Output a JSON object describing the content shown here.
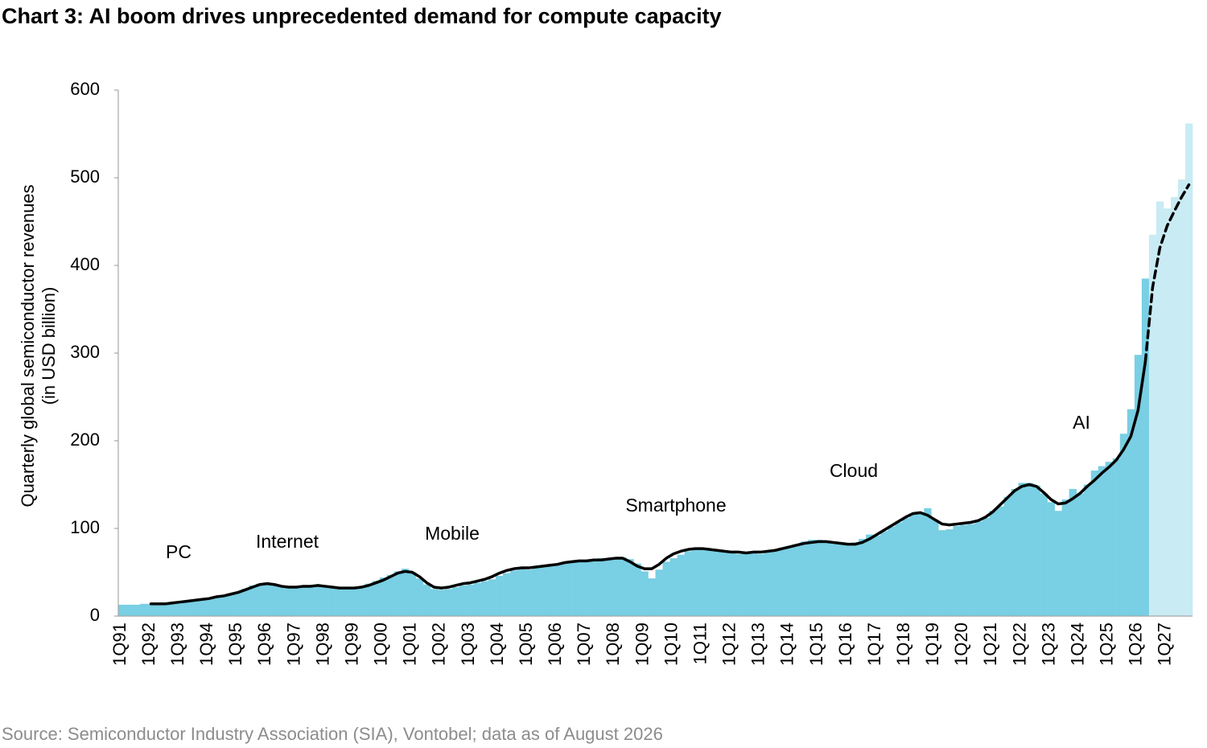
{
  "chart_data": {
    "type": "bar",
    "title": "Chart 3: AI boom drives unprecedented demand for compute capacity",
    "y_label": [
      "Quarterly global semiconductor revenues",
      "(in USD billion)"
    ],
    "source": "Source: Semiconductor Industry Association (SIA), Vontobel; data as of August 2026",
    "annotations": [
      "PC",
      "Internet",
      "Mobile",
      "Smartphone",
      "Cloud",
      "AI"
    ],
    "categories": [
      "1Q91",
      null,
      null,
      null,
      "1Q92",
      null,
      null,
      null,
      "1Q93",
      null,
      null,
      null,
      "1Q94",
      null,
      null,
      null,
      "1Q95",
      null,
      null,
      null,
      "1Q96",
      null,
      null,
      null,
      "1Q97",
      null,
      null,
      null,
      "1Q98",
      null,
      null,
      null,
      "1Q99",
      null,
      null,
      null,
      "1Q00",
      null,
      null,
      null,
      "1Q01",
      null,
      null,
      null,
      "1Q02",
      null,
      null,
      null,
      "1Q03",
      null,
      null,
      null,
      "1Q04",
      null,
      null,
      null,
      "1Q05",
      null,
      null,
      null,
      "1Q06",
      null,
      null,
      null,
      "1Q07",
      null,
      null,
      null,
      "1Q08",
      null,
      null,
      null,
      "1Q09",
      null,
      null,
      null,
      "1Q10",
      null,
      null,
      null,
      "1Q11",
      null,
      null,
      null,
      "1Q12",
      null,
      null,
      null,
      "1Q13",
      null,
      null,
      null,
      "1Q14",
      null,
      null,
      null,
      "1Q15",
      null,
      null,
      null,
      "1Q16",
      null,
      null,
      null,
      "1Q17",
      null,
      null,
      null,
      "1Q18",
      null,
      null,
      null,
      "1Q19",
      null,
      null,
      null,
      "1Q20",
      null,
      null,
      null,
      "1Q21",
      null,
      null,
      null,
      "1Q22",
      null,
      null,
      null,
      "1Q23",
      null,
      null,
      null,
      "1Q24",
      null,
      null,
      null,
      "1Q25",
      null,
      null,
      null,
      "1Q26",
      null,
      null,
      null,
      "1Q27",
      null,
      null,
      null
    ],
    "series": [
      {
        "kind": "bar",
        "color": "#79cfe3",
        "values": [
          13,
          13,
          13,
          14,
          14,
          14,
          15,
          15,
          16,
          17,
          18,
          19,
          20,
          22,
          24,
          26,
          28,
          31,
          35,
          37,
          37,
          36,
          33,
          32,
          32,
          33,
          35,
          35,
          33,
          32,
          31,
          32,
          33,
          34,
          37,
          40,
          44,
          47,
          51,
          54,
          50,
          43,
          36,
          31,
          30,
          31,
          33,
          35,
          36,
          38,
          40,
          42,
          46,
          49,
          52,
          54,
          53,
          55,
          57,
          58,
          58,
          60,
          62,
          63,
          62,
          64,
          66,
          66,
          66,
          67,
          65,
          60,
          51,
          43,
          53,
          62,
          66,
          70,
          74,
          78,
          76,
          76,
          75,
          74,
          72,
          71,
          72,
          73,
          71,
          73,
          76,
          78,
          80,
          82,
          85,
          87,
          87,
          86,
          85,
          84,
          82,
          84,
          88,
          93,
          92,
          97,
          102,
          107,
          112,
          116,
          118,
          123,
          110,
          98,
          99,
          103,
          104,
          105,
          108,
          112,
          120,
          125,
          136,
          145,
          152,
          152,
          149,
          140,
          130,
          120,
          133,
          145,
          140,
          150,
          166,
          171,
          176,
          180,
          208,
          236,
          298,
          385,
          null,
          null,
          null,
          null,
          null,
          null
        ]
      },
      {
        "kind": "bar",
        "color": "#c9ebf4",
        "values": [
          null,
          null,
          null,
          null,
          null,
          null,
          null,
          null,
          null,
          null,
          null,
          null,
          null,
          null,
          null,
          null,
          null,
          null,
          null,
          null,
          null,
          null,
          null,
          null,
          null,
          null,
          null,
          null,
          null,
          null,
          null,
          null,
          null,
          null,
          null,
          null,
          null,
          null,
          null,
          null,
          null,
          null,
          null,
          null,
          null,
          null,
          null,
          null,
          null,
          null,
          null,
          null,
          null,
          null,
          null,
          null,
          null,
          null,
          null,
          null,
          null,
          null,
          null,
          null,
          null,
          null,
          null,
          null,
          null,
          null,
          null,
          null,
          null,
          null,
          null,
          null,
          null,
          null,
          null,
          null,
          null,
          null,
          null,
          null,
          null,
          null,
          null,
          null,
          null,
          null,
          null,
          null,
          null,
          null,
          null,
          null,
          null,
          null,
          null,
          null,
          null,
          null,
          null,
          null,
          null,
          null,
          null,
          null,
          null,
          null,
          null,
          null,
          null,
          null,
          null,
          null,
          null,
          null,
          null,
          null,
          null,
          null,
          null,
          null,
          null,
          null,
          null,
          null,
          null,
          null,
          null,
          null,
          null,
          null,
          null,
          null,
          null,
          null,
          null,
          null,
          null,
          null,
          435,
          473,
          465,
          478,
          498,
          562
        ]
      },
      {
        "kind": "line",
        "color": "#000000",
        "dashed": false,
        "values": [
          null,
          null,
          null,
          null,
          14,
          14,
          14,
          15,
          16,
          17,
          18,
          19,
          20,
          22,
          23,
          25,
          27,
          30,
          33,
          36,
          37,
          36,
          34,
          33,
          33,
          34,
          34,
          35,
          34,
          33,
          32,
          32,
          32,
          33,
          35,
          38,
          41,
          45,
          49,
          51,
          50,
          45,
          38,
          33,
          32,
          33,
          35,
          37,
          38,
          40,
          42,
          45,
          49,
          52,
          54,
          55,
          55,
          56,
          57,
          58,
          59,
          61,
          62,
          63,
          63,
          64,
          64,
          65,
          66,
          66,
          62,
          57,
          54,
          54,
          59,
          66,
          71,
          74,
          76,
          77,
          77,
          76,
          75,
          74,
          73,
          73,
          72,
          73,
          73,
          74,
          75,
          77,
          79,
          81,
          83,
          84,
          85,
          85,
          84,
          83,
          82,
          82,
          84,
          88,
          93,
          98,
          103,
          108,
          113,
          117,
          118,
          115,
          110,
          105,
          104,
          105,
          106,
          107,
          109,
          113,
          119,
          127,
          135,
          143,
          148,
          150,
          148,
          141,
          133,
          128,
          129,
          134,
          140,
          148,
          155,
          163,
          170,
          178,
          190,
          205,
          235,
          290,
          null,
          null,
          null,
          null,
          null,
          null
        ]
      },
      {
        "kind": "line",
        "color": "#000000",
        "dashed": true,
        "values": [
          null,
          null,
          null,
          null,
          null,
          null,
          null,
          null,
          null,
          null,
          null,
          null,
          null,
          null,
          null,
          null,
          null,
          null,
          null,
          null,
          null,
          null,
          null,
          null,
          null,
          null,
          null,
          null,
          null,
          null,
          null,
          null,
          null,
          null,
          null,
          null,
          null,
          null,
          null,
          null,
          null,
          null,
          null,
          null,
          null,
          null,
          null,
          null,
          null,
          null,
          null,
          null,
          null,
          null,
          null,
          null,
          null,
          null,
          null,
          null,
          null,
          null,
          null,
          null,
          null,
          null,
          null,
          null,
          null,
          null,
          null,
          null,
          null,
          null,
          null,
          null,
          null,
          null,
          null,
          null,
          null,
          null,
          null,
          null,
          null,
          null,
          null,
          null,
          null,
          null,
          null,
          null,
          null,
          null,
          null,
          null,
          null,
          null,
          null,
          null,
          null,
          null,
          null,
          null,
          null,
          null,
          null,
          null,
          null,
          null,
          null,
          null,
          null,
          null,
          null,
          null,
          null,
          null,
          null,
          null,
          null,
          null,
          null,
          null,
          null,
          null,
          null,
          null,
          null,
          null,
          null,
          null,
          null,
          null,
          null,
          null,
          null,
          null,
          null,
          null,
          null,
          290,
          375,
          420,
          445,
          462,
          478,
          492
        ]
      }
    ],
    "ylim": [
      0,
      600
    ],
    "yticks": [
      0,
      100,
      200,
      300,
      400,
      500,
      600
    ],
    "grid": false
  }
}
